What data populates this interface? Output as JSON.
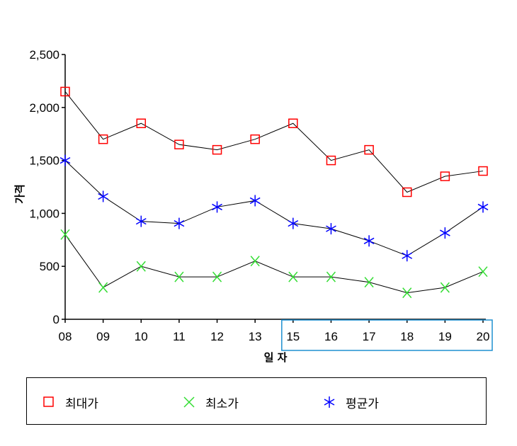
{
  "chart_data": {
    "type": "line",
    "xlabel": "일 자",
    "ylabel": "가격",
    "categories": [
      "08",
      "09",
      "10",
      "11",
      "12",
      "13",
      "15",
      "16",
      "17",
      "18",
      "19",
      "20"
    ],
    "ylim": [
      0,
      2500
    ],
    "yticks": [
      "0",
      "500",
      "1,000",
      "1,500",
      "2,000",
      "2,500"
    ],
    "ytick_values": [
      0,
      500,
      1000,
      1500,
      2000,
      2500
    ],
    "grid": false,
    "legend_position": "bottom",
    "series": [
      {
        "name": "최대가",
        "marker": "square",
        "color": "#ff0000",
        "values": [
          2150,
          1700,
          1850,
          1650,
          1600,
          1700,
          1850,
          1500,
          1600,
          1200,
          1350,
          1400
        ]
      },
      {
        "name": "최소가",
        "marker": "x",
        "color": "#33dd33",
        "values": [
          800,
          300,
          500,
          400,
          400,
          550,
          400,
          400,
          350,
          250,
          300,
          450
        ]
      },
      {
        "name": "평균가",
        "marker": "asterisk",
        "color": "#0000ff",
        "values": [
          1500,
          1160,
          925,
          905,
          1060,
          1120,
          905,
          855,
          740,
          600,
          815,
          1060
        ]
      }
    ],
    "highlight": {
      "from_category": "15",
      "to_category": "20",
      "color": "#1e90d0"
    }
  }
}
